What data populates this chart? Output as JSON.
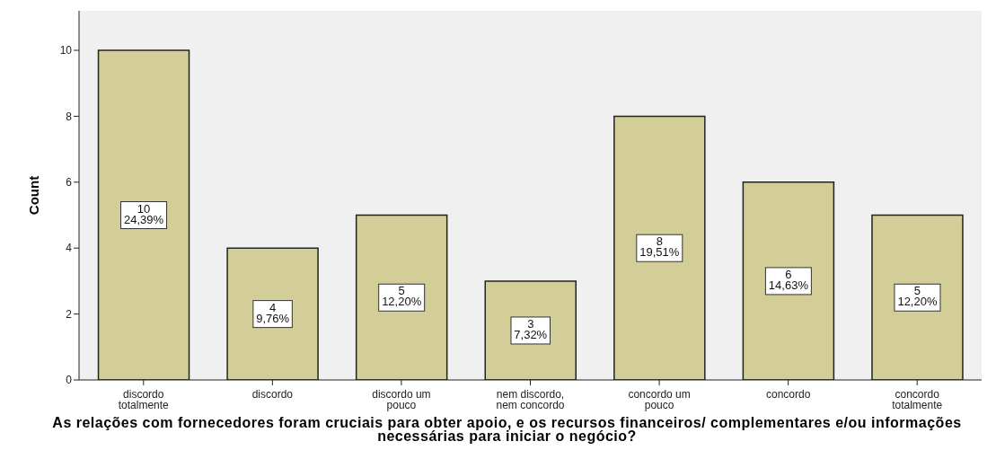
{
  "chart_data": {
    "type": "bar",
    "categories": [
      "discordo totalmente",
      "discordo",
      "discordo um pouco",
      "nem discordo, nem concordo",
      "concordo um pouco",
      "concordo",
      "concordo totalmente"
    ],
    "values": [
      10,
      4,
      5,
      3,
      8,
      6,
      5
    ],
    "value_labels": [
      "10\n24,39%",
      "4\n9,76%",
      "5\n12,20%",
      "3\n7,32%",
      "8\n19,51%",
      "6\n14,63%",
      "5\n12,20%"
    ],
    "color": "#d3ce97",
    "ylim": [
      0,
      11.2
    ],
    "yticks": [
      0,
      2,
      4,
      6,
      8,
      10
    ],
    "xlabel": "As relações com fornecedores foram cruciais para obter apoio, e os recursos financeiros/ complementares e/ou informações necessárias para iniciar o negócio?",
    "ylabel": "Count",
    "grid": false
  }
}
